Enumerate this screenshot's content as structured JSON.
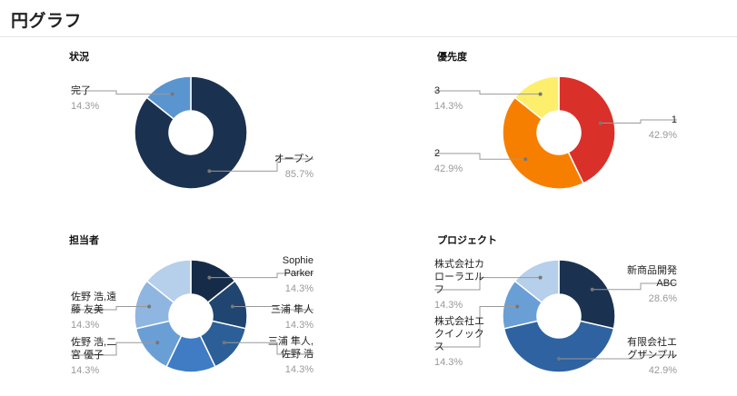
{
  "page": {
    "title": "円グラフ"
  },
  "chart_data": [
    {
      "type": "pie",
      "title": "状況",
      "donut": true,
      "slices": [
        {
          "label": "オープン",
          "value": 6,
          "percent": "85.7%",
          "color": "#1b3150"
        },
        {
          "label": "完了",
          "value": 1,
          "percent": "14.3%",
          "color": "#5b95d0"
        }
      ]
    },
    {
      "type": "pie",
      "title": "優先度",
      "donut": true,
      "slices": [
        {
          "label": "1",
          "value": 3,
          "percent": "42.9%",
          "color": "#d9302a"
        },
        {
          "label": "2",
          "value": 3,
          "percent": "42.9%",
          "color": "#f77f00"
        },
        {
          "label": "3",
          "value": 1,
          "percent": "14.3%",
          "color": "#fdee6c"
        }
      ]
    },
    {
      "type": "pie",
      "title": "担当者",
      "donut": true,
      "slices": [
        {
          "label": "Sophie Parker",
          "value": 1,
          "percent": "14.3%",
          "color": "#152b47"
        },
        {
          "label": "三浦 隼人",
          "value": 1,
          "percent": "14.3%",
          "color": "#1f4570"
        },
        {
          "label": "三浦 隼人,佐野 浩",
          "value": 1,
          "percent": "14.3%",
          "color": "#2c5f98"
        },
        {
          "label": "",
          "value": 1,
          "percent": "",
          "color": "#3f7cc4"
        },
        {
          "label": "佐野 浩,二宮 優子",
          "value": 1,
          "percent": "14.3%",
          "color": "#6a9fd6"
        },
        {
          "label": "佐野 浩,遠藤 友美",
          "value": 1,
          "percent": "14.3%",
          "color": "#8fb6e0"
        },
        {
          "label": "",
          "value": 1,
          "percent": "",
          "color": "#b6cfea"
        }
      ]
    },
    {
      "type": "pie",
      "title": "プロジェクト",
      "donut": true,
      "slices": [
        {
          "label": "新商品開発ABC",
          "value": 2,
          "percent": "28.6%",
          "color": "#1b3150"
        },
        {
          "label": "有限会社エグザンプル",
          "value": 3,
          "percent": "42.9%",
          "color": "#2f62a0"
        },
        {
          "label": "株式会社エクイノックス",
          "value": 1,
          "percent": "14.3%",
          "color": "#6a9fd6"
        },
        {
          "label": "株式会社カローラエルフ",
          "value": 1,
          "percent": "14.3%",
          "color": "#b6cfea"
        }
      ]
    }
  ]
}
